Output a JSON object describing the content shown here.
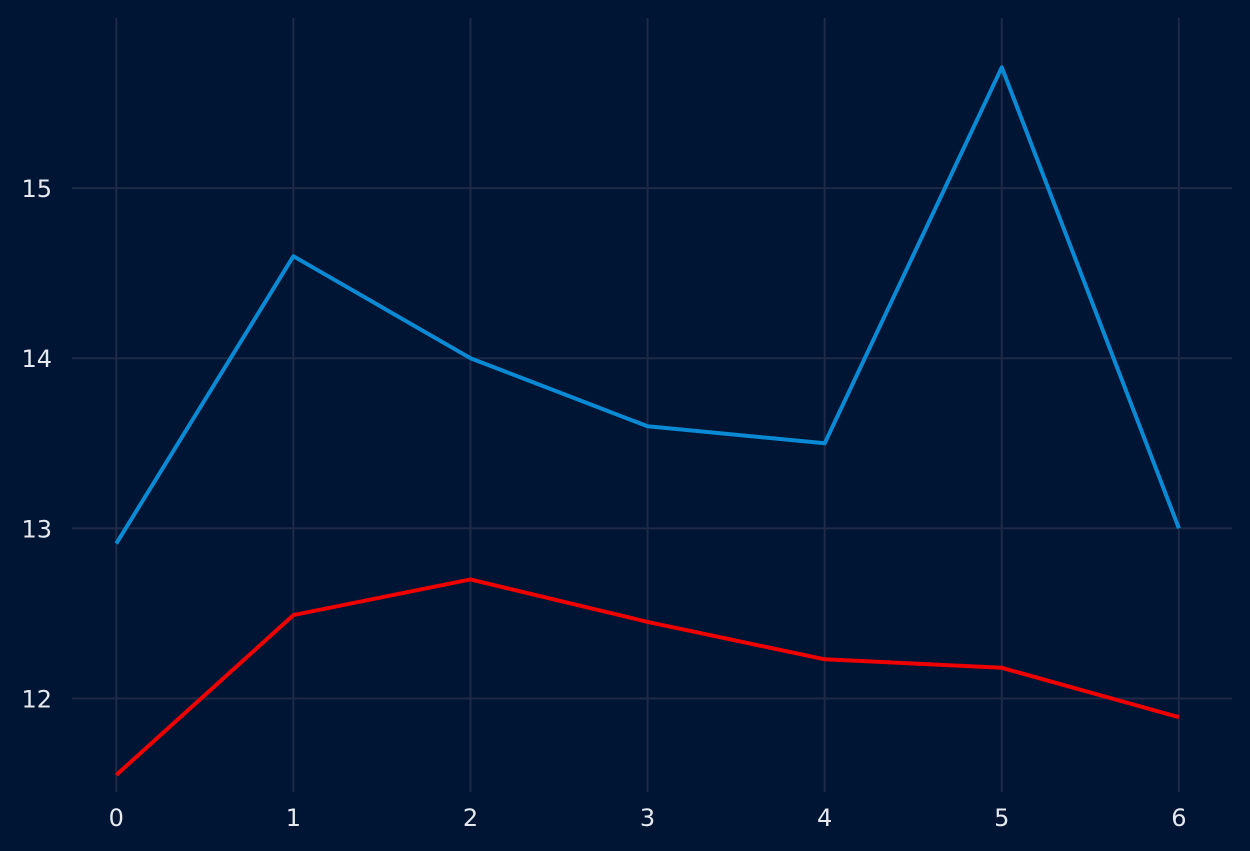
{
  "chart_data": {
    "type": "line",
    "title": "",
    "xlabel": "",
    "ylabel": "",
    "x": [
      0,
      1,
      2,
      3,
      4,
      5,
      6
    ],
    "xlim": [
      -0.25,
      6.3
    ],
    "ylim": [
      11.45,
      16.0
    ],
    "x_ticks": [
      0,
      1,
      2,
      3,
      4,
      5,
      6
    ],
    "y_ticks": [
      12,
      13,
      14,
      15
    ],
    "grid": true,
    "legend": "none",
    "background_color": "#001533",
    "grid_color": "#1e2a47",
    "tick_label_color": "#e6e9ef",
    "series": [
      {
        "color": "#0a8ad4",
        "values": [
          12.91,
          14.6,
          14.0,
          13.6,
          13.5,
          15.71,
          13.0
        ]
      },
      {
        "color": "#ee0000",
        "values": [
          11.55,
          12.49,
          12.7,
          12.45,
          12.23,
          12.18,
          11.89
        ]
      }
    ]
  }
}
